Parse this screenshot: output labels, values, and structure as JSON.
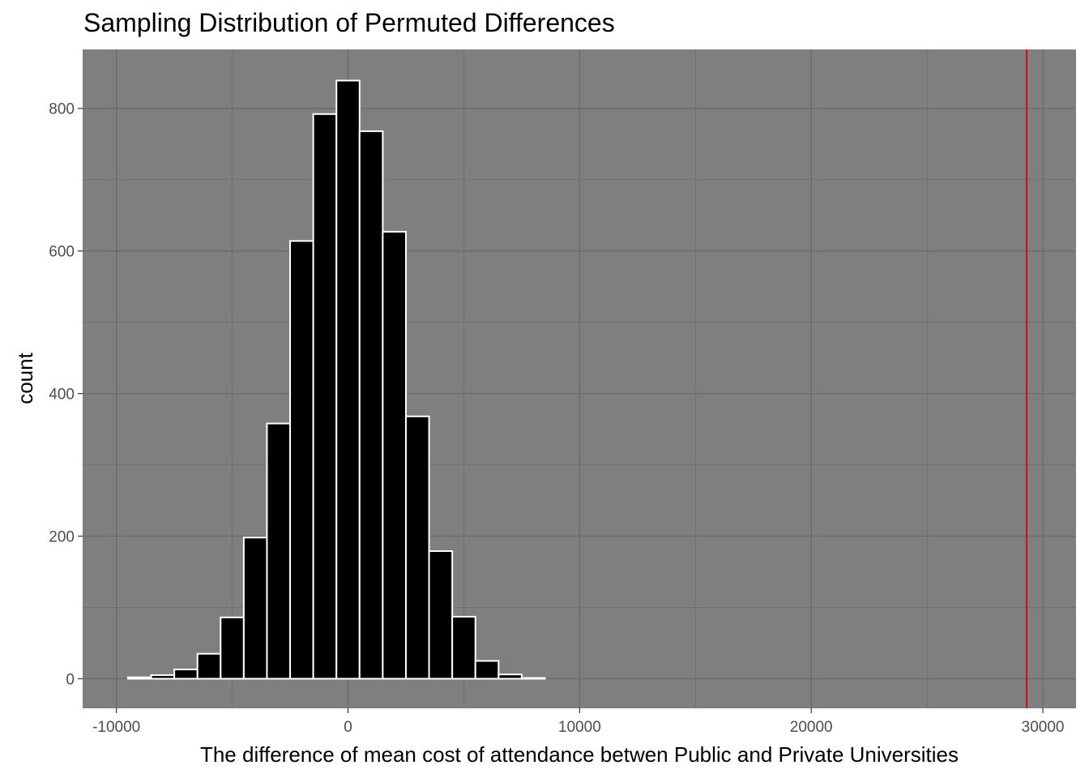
{
  "chart_data": {
    "type": "bar",
    "title": "Sampling Distribution of Permuted Differences",
    "xlabel": "The difference of mean cost of attendance betwen Public and Private Universities",
    "ylabel": "count",
    "xlim": [
      -10000,
      30000
    ],
    "ylim": [
      0,
      850
    ],
    "x_ticks": [
      -10000,
      0,
      10000,
      20000,
      30000
    ],
    "x_tick_labels": [
      "-10000",
      "0",
      "10000",
      "20000",
      "30000"
    ],
    "y_ticks": [
      0,
      200,
      400,
      600,
      800
    ],
    "y_tick_labels": [
      "0",
      "200",
      "400",
      "600",
      "800"
    ],
    "bin_width": 1000,
    "bins": [
      {
        "x": -9000,
        "count": 2
      },
      {
        "x": -8000,
        "count": 5
      },
      {
        "x": -7000,
        "count": 13
      },
      {
        "x": -6000,
        "count": 35
      },
      {
        "x": -5000,
        "count": 86
      },
      {
        "x": -4000,
        "count": 198
      },
      {
        "x": -3000,
        "count": 358
      },
      {
        "x": -2000,
        "count": 614
      },
      {
        "x": -1000,
        "count": 792
      },
      {
        "x": 0,
        "count": 839
      },
      {
        "x": 1000,
        "count": 768
      },
      {
        "x": 2000,
        "count": 627
      },
      {
        "x": 3000,
        "count": 368
      },
      {
        "x": 4000,
        "count": 179
      },
      {
        "x": 5000,
        "count": 87
      },
      {
        "x": 6000,
        "count": 25
      },
      {
        "x": 7000,
        "count": 6
      },
      {
        "x": 8000,
        "count": 1
      },
      {
        "x": 9000,
        "count": 0
      },
      {
        "x": 10000,
        "count": 0
      },
      {
        "x": 11000,
        "count": 0
      },
      {
        "x": 12000,
        "count": 0
      },
      {
        "x": 13000,
        "count": 0
      },
      {
        "x": 14000,
        "count": 0
      },
      {
        "x": 15000,
        "count": 0
      },
      {
        "x": 16000,
        "count": 0
      },
      {
        "x": 17000,
        "count": 0
      },
      {
        "x": 18000,
        "count": 0
      },
      {
        "x": 19000,
        "count": 0
      },
      {
        "x": 20000,
        "count": 0
      },
      {
        "x": 21000,
        "count": 0
      },
      {
        "x": 22000,
        "count": 0
      },
      {
        "x": 23000,
        "count": 0
      },
      {
        "x": 24000,
        "count": 0
      },
      {
        "x": 25000,
        "count": 0
      },
      {
        "x": 26000,
        "count": 0
      },
      {
        "x": 27000,
        "count": 0
      },
      {
        "x": 28000,
        "count": 0
      },
      {
        "x": 29000,
        "count": 0
      }
    ],
    "reference_line": {
      "x": 29300,
      "color": "#e00000"
    },
    "colors": {
      "panel_background": "#7f7f7f",
      "grid": "#6a6a6a",
      "bar_fill": "#000000",
      "bar_outline": "#ffffff"
    },
    "grid": true,
    "legend": "none"
  }
}
